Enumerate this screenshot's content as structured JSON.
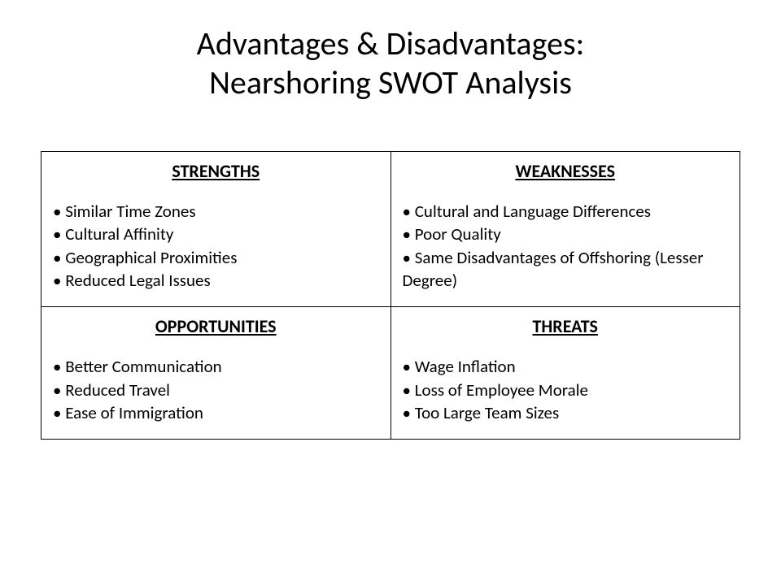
{
  "title_line1": "Advantages & Disadvantages:",
  "title_line2": "Nearshoring SWOT Analysis",
  "swot": {
    "type": "table",
    "layout": "2x2",
    "border_color": "#000000",
    "background_color": "#ffffff",
    "text_color": "#000000",
    "header_fontsize": 22,
    "header_weight": "700",
    "header_underline": true,
    "item_fontsize": 21,
    "bullet_char": "•",
    "quadrants": [
      {
        "header": "STRENGTHS",
        "items": [
          "Similar Time Zones",
          "Cultural Affinity",
          "Geographical Proximities",
          "Reduced Legal Issues"
        ]
      },
      {
        "header": "WEAKNESSES",
        "items": [
          "Cultural and Language Differences",
          "Poor Quality",
          "Same Disadvantages of Offshoring (Lesser Degree)"
        ]
      },
      {
        "header": "OPPORTUNITIES",
        "items": [
          "Better Communication",
          "Reduced Travel",
          "Ease of Immigration"
        ]
      },
      {
        "header": "THREATS",
        "items": [
          "Wage Inflation",
          "Loss of Employee Morale",
          "Too Large Team Sizes"
        ]
      }
    ]
  }
}
